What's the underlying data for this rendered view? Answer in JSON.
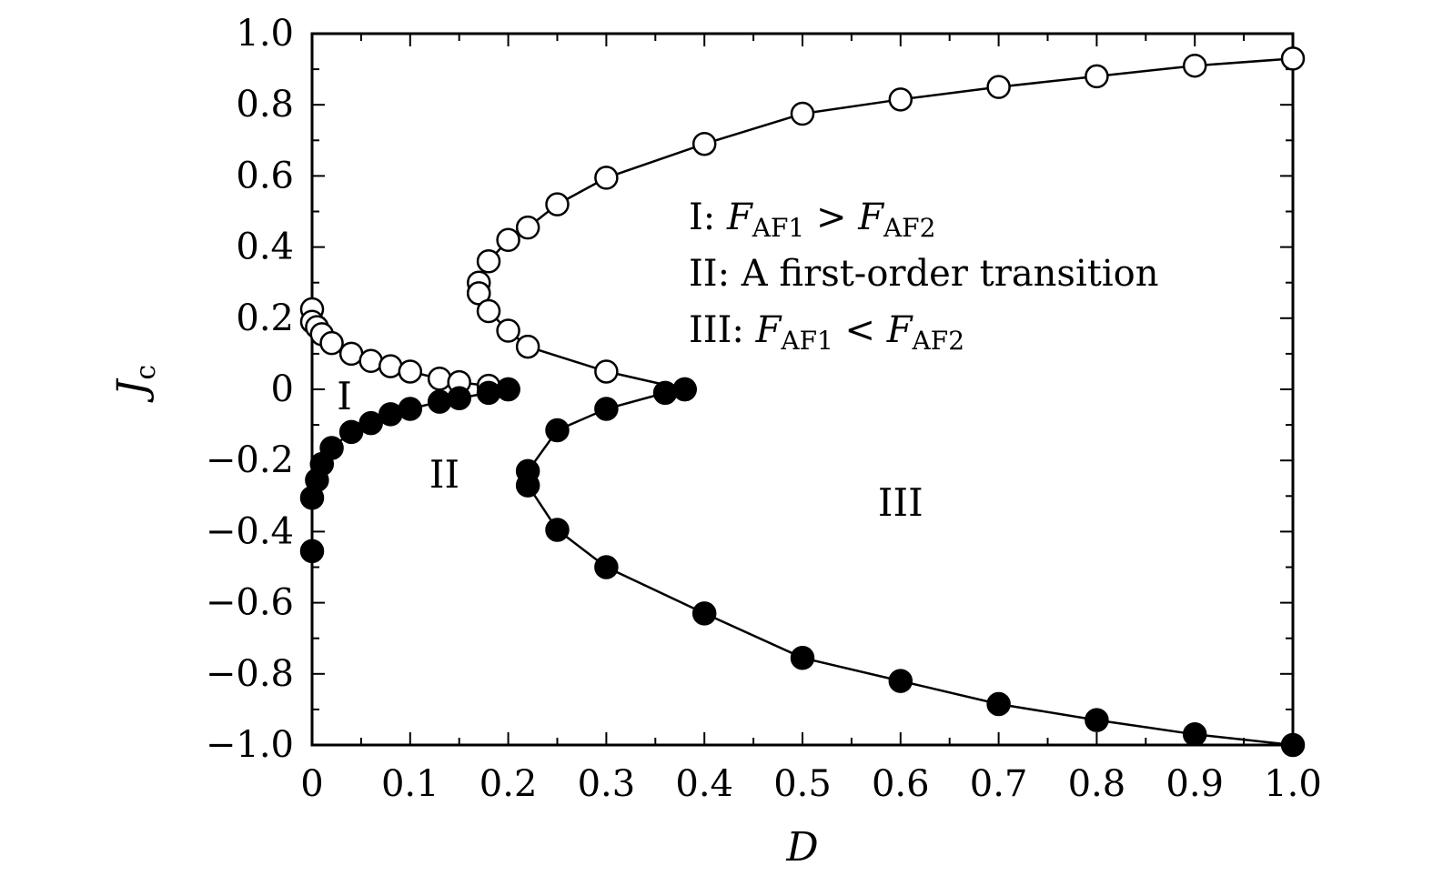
{
  "chart_data": {
    "type": "scatter",
    "xlabel": "D",
    "ylabel": {
      "main": "J",
      "sub": "c"
    },
    "xlim": [
      0,
      1.0
    ],
    "ylim": [
      -1.0,
      1.0
    ],
    "x_ticks": [
      {
        "v": 0,
        "label": "0"
      },
      {
        "v": 0.1,
        "label": "0.1"
      },
      {
        "v": 0.2,
        "label": "0.2"
      },
      {
        "v": 0.3,
        "label": "0.3"
      },
      {
        "v": 0.4,
        "label": "0.4"
      },
      {
        "v": 0.5,
        "label": "0.5"
      },
      {
        "v": 0.6,
        "label": "0.6"
      },
      {
        "v": 0.7,
        "label": "0.7"
      },
      {
        "v": 0.8,
        "label": "0.8"
      },
      {
        "v": 0.9,
        "label": "0.9"
      },
      {
        "v": 1.0,
        "label": "1.0"
      }
    ],
    "y_ticks": [
      {
        "v": 1.0,
        "label": "1.0"
      },
      {
        "v": 0.8,
        "label": "0.8"
      },
      {
        "v": 0.6,
        "label": "0.6"
      },
      {
        "v": 0.4,
        "label": "0.4"
      },
      {
        "v": 0.2,
        "label": "0.2"
      },
      {
        "v": 0,
        "label": "0"
      },
      {
        "v": -0.2,
        "label": "−0.2"
      },
      {
        "v": -0.4,
        "label": "−0.4"
      },
      {
        "v": -0.6,
        "label": "−0.6"
      },
      {
        "v": -0.8,
        "label": "−0.8"
      },
      {
        "v": -1.0,
        "label": "−1.0"
      }
    ],
    "grid": false,
    "legend_lines": [
      {
        "prefix": "I: ",
        "a": "F",
        "asub": "AF1",
        "op": " > ",
        "b": "F",
        "bsub": "AF2"
      },
      {
        "text": "II: A first-order transition"
      },
      {
        "prefix": "III: ",
        "a": "F",
        "asub": "AF1",
        "op": " < ",
        "b": "F",
        "bsub": "AF2"
      }
    ],
    "region_labels": [
      {
        "text": "I",
        "x": 0.033,
        "y": -0.02
      },
      {
        "text": "II",
        "x": 0.135,
        "y": -0.24
      },
      {
        "text": "III",
        "x": 0.6,
        "y": -0.32
      }
    ],
    "series": [
      {
        "marker": "open-circle",
        "connected": true,
        "points": [
          [
            0.17,
            0.27
          ],
          [
            0.17,
            0.3
          ],
          [
            0.18,
            0.36
          ],
          [
            0.2,
            0.42
          ],
          [
            0.22,
            0.455
          ],
          [
            0.25,
            0.52
          ],
          [
            0.3,
            0.595
          ],
          [
            0.4,
            0.69
          ],
          [
            0.5,
            0.775
          ],
          [
            0.6,
            0.815
          ],
          [
            0.7,
            0.85
          ],
          [
            0.8,
            0.88
          ],
          [
            0.9,
            0.91
          ],
          [
            1.0,
            0.93
          ]
        ]
      },
      {
        "marker": "open-circle",
        "connected": true,
        "points": [
          [
            0.17,
            0.27
          ],
          [
            0.18,
            0.22
          ],
          [
            0.2,
            0.165
          ],
          [
            0.22,
            0.12
          ],
          [
            0.3,
            0.05
          ],
          [
            0.38,
            0.0
          ]
        ]
      },
      {
        "marker": "open-circle",
        "connected": true,
        "points": [
          [
            0.0,
            0.225
          ],
          [
            0.0,
            0.19
          ],
          [
            0.005,
            0.175
          ],
          [
            0.01,
            0.155
          ],
          [
            0.02,
            0.13
          ],
          [
            0.04,
            0.1
          ],
          [
            0.06,
            0.08
          ],
          [
            0.08,
            0.065
          ],
          [
            0.1,
            0.05
          ],
          [
            0.13,
            0.03
          ],
          [
            0.15,
            0.02
          ],
          [
            0.18,
            0.01
          ],
          [
            0.2,
            0.0
          ]
        ]
      },
      {
        "marker": "filled-circle",
        "connected": true,
        "points": [
          [
            0.0,
            -0.455
          ],
          [
            0.0,
            -0.305
          ],
          [
            0.005,
            -0.255
          ],
          [
            0.01,
            -0.21
          ],
          [
            0.02,
            -0.165
          ],
          [
            0.04,
            -0.12
          ],
          [
            0.06,
            -0.095
          ],
          [
            0.08,
            -0.07
          ],
          [
            0.1,
            -0.055
          ],
          [
            0.13,
            -0.035
          ],
          [
            0.15,
            -0.025
          ],
          [
            0.18,
            -0.01
          ],
          [
            0.2,
            0.0
          ]
        ]
      },
      {
        "marker": "filled-circle",
        "connected": true,
        "points": [
          [
            0.22,
            -0.23
          ],
          [
            0.25,
            -0.115
          ],
          [
            0.3,
            -0.055
          ],
          [
            0.36,
            -0.01
          ],
          [
            0.38,
            0.0
          ]
        ]
      },
      {
        "marker": "filled-circle",
        "connected": true,
        "points": [
          [
            0.22,
            -0.27
          ],
          [
            0.25,
            -0.395
          ],
          [
            0.3,
            -0.5
          ],
          [
            0.4,
            -0.63
          ],
          [
            0.5,
            -0.755
          ],
          [
            0.6,
            -0.82
          ],
          [
            0.7,
            -0.885
          ],
          [
            0.8,
            -0.93
          ],
          [
            0.9,
            -0.97
          ],
          [
            1.0,
            -1.0
          ]
        ]
      }
    ]
  }
}
